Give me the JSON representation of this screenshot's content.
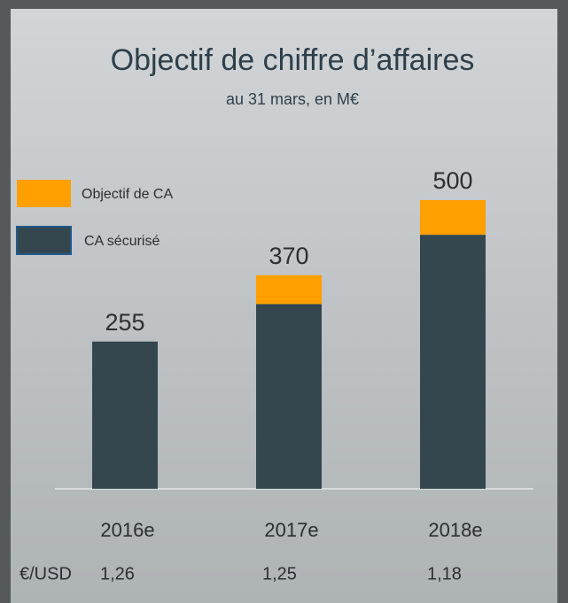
{
  "chart_data": {
    "type": "stacked_bar",
    "title": "Objectif de chiffre d’affaires",
    "subtitle": "au 31 mars, en M€",
    "categories": [
      "2016e",
      "2017e",
      "2018e"
    ],
    "series": [
      {
        "name": "CA sécurisé",
        "color": "#34474f",
        "values": [
          255,
          320,
          440
        ]
      },
      {
        "name": "Objectif de CA",
        "color": "#ff9f00",
        "values": [
          0,
          50,
          60
        ]
      }
    ],
    "totals": [
      255,
      370,
      500
    ],
    "exchange_rate": {
      "label": "€/USD",
      "values": [
        1.26,
        1.25,
        1.18
      ],
      "value_labels": [
        "1,26",
        "1,25",
        "1,18"
      ]
    }
  }
}
